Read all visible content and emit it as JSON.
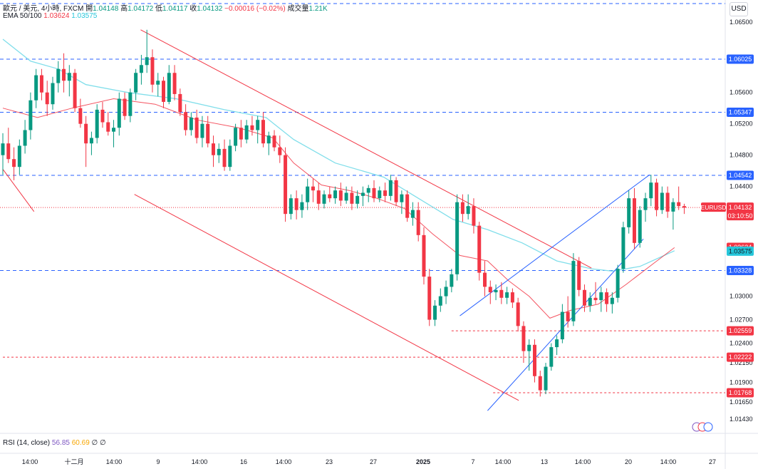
{
  "legend": {
    "symbol": "歐元 / 美元, 4小時, FXCM",
    "open_label": "開",
    "open": "1.04148",
    "high_label": "高",
    "high": "1.04172",
    "low_label": "低",
    "low": "1.04117",
    "close_label": "收",
    "close": "1.04132",
    "change": "−0.00016 (−0.02%)",
    "volume_label": "成交量",
    "volume": "1.21K",
    "ema_label": "EMA 50/100",
    "ema50": "1.03624",
    "ema100": "1.03575"
  },
  "currency": "USD",
  "rsi": {
    "label": "RSI (14, close)",
    "value": "56.85",
    "ma": "60.69",
    "flag1": "∅",
    "flag2": "∅"
  },
  "colors": {
    "up": "#089981",
    "down": "#f23645",
    "ema50": "#f23645",
    "ema100": "#80deea",
    "level": "#2962ff",
    "trend_down": "#f23645",
    "trend_up": "#2962ff"
  },
  "chart_data": {
    "type": "candlestick",
    "symbol": "EURUSD",
    "timeframe": "4小時",
    "ylim": [
      1.0125,
      1.0678
    ],
    "x_tick_labels": [
      "14:00",
      "十二月",
      "14:00",
      "9",
      "14:00",
      "16",
      "14:00",
      "23",
      "27",
      "2025",
      "7",
      "14:00",
      "13",
      "14:00",
      "20",
      "14:00",
      "27"
    ],
    "y_tick_labels": [
      "1.06500",
      "1.05600",
      "1.05200",
      "1.04800",
      "1.04400",
      "1.03000",
      "1.02700",
      "1.02400",
      "1.02150",
      "1.01900",
      "1.01650",
      "1.01430"
    ],
    "price_labels": [
      {
        "text": "1.06025",
        "value": 1.06025,
        "style": "blue"
      },
      {
        "text": "1.05347",
        "value": 1.05347,
        "style": "blue"
      },
      {
        "text": "1.04542",
        "value": 1.04542,
        "style": "blue"
      },
      {
        "text": "1.03624",
        "value": 1.03624,
        "style": "red"
      },
      {
        "text": "1.03575",
        "value": 1.03575,
        "style": "cyan"
      },
      {
        "text": "1.03328",
        "value": 1.03328,
        "style": "blue"
      },
      {
        "text": "1.02559",
        "value": 1.02559,
        "style": "red"
      },
      {
        "text": "1.02222",
        "value": 1.02222,
        "style": "red"
      },
      {
        "text": "1.01768",
        "value": 1.01768,
        "style": "red"
      }
    ],
    "last_price": {
      "symbol": "EURUSD",
      "price": "1.04132",
      "value": 1.04132,
      "countdown": "03:10:50"
    },
    "blue_levels": [
      1.06735,
      1.06025,
      1.05347,
      1.04542,
      1.03328
    ],
    "red_levels": [
      {
        "value": 1.02559,
        "from": 0.648
      },
      {
        "value": 1.02222,
        "from": 0.0
      },
      {
        "value": 1.01768,
        "from": 0.708
      }
    ],
    "ema50": [
      [
        0.0,
        1.054
      ],
      [
        0.05,
        1.0528
      ],
      [
        0.1,
        1.054
      ],
      [
        0.16,
        1.0552
      ],
      [
        0.22,
        1.0545
      ],
      [
        0.28,
        1.0525
      ],
      [
        0.34,
        1.0515
      ],
      [
        0.39,
        1.0502
      ],
      [
        0.42,
        1.047
      ],
      [
        0.46,
        1.0442
      ],
      [
        0.5,
        1.0435
      ],
      [
        0.54,
        1.0425
      ],
      [
        0.58,
        1.0412
      ],
      [
        0.62,
        1.038
      ],
      [
        0.66,
        1.0352
      ],
      [
        0.7,
        1.0345
      ],
      [
        0.73,
        1.032
      ],
      [
        0.76,
        1.03
      ],
      [
        0.79,
        1.0272
      ],
      [
        0.82,
        1.0282
      ],
      [
        0.86,
        1.029
      ],
      [
        0.9,
        1.0315
      ],
      [
        0.94,
        1.0342
      ],
      [
        0.97,
        1.0362
      ]
    ],
    "ema100": [
      [
        0.0,
        1.0628
      ],
      [
        0.04,
        1.06
      ],
      [
        0.08,
        1.059
      ],
      [
        0.12,
        1.057
      ],
      [
        0.18,
        1.056
      ],
      [
        0.25,
        1.0552
      ],
      [
        0.32,
        1.0538
      ],
      [
        0.38,
        1.0528
      ],
      [
        0.42,
        1.05
      ],
      [
        0.48,
        1.047
      ],
      [
        0.55,
        1.0452
      ],
      [
        0.6,
        1.0425
      ],
      [
        0.65,
        1.0398
      ],
      [
        0.7,
        1.0385
      ],
      [
        0.75,
        1.0368
      ],
      [
        0.8,
        1.0345
      ],
      [
        0.85,
        1.0335
      ],
      [
        0.88,
        1.0332
      ],
      [
        0.92,
        1.0338
      ],
      [
        0.95,
        1.035
      ],
      [
        0.97,
        1.0358
      ]
    ],
    "trendlines": [
      {
        "color": "down",
        "from": [
          0.0,
          1.0462
        ],
        "to": [
          0.045,
          1.0408
        ]
      },
      {
        "color": "down",
        "from": [
          0.199,
          1.064
        ],
        "to": [
          0.85,
          1.0336
        ]
      },
      {
        "color": "down",
        "from": [
          0.19,
          1.043
        ],
        "to": [
          0.745,
          1.0167
        ]
      },
      {
        "color": "up",
        "from": [
          0.66,
          1.0275
        ],
        "to": [
          0.934,
          1.0455
        ]
      },
      {
        "color": "up",
        "from": [
          0.7,
          1.0154
        ],
        "to": [
          0.925,
          1.0373
        ]
      }
    ],
    "candles": [
      [
        0.0,
        1.048,
        1.0508,
        1.0455,
        1.0495
      ],
      [
        0.008,
        1.0495,
        1.0515,
        1.047,
        1.0475
      ],
      [
        0.016,
        1.0475,
        1.049,
        1.0448,
        1.0465
      ],
      [
        0.024,
        1.0465,
        1.05,
        1.0455,
        1.0492
      ],
      [
        0.032,
        1.0492,
        1.0525,
        1.0482,
        1.0512
      ],
      [
        0.04,
        1.0512,
        1.056,
        1.05,
        1.055
      ],
      [
        0.048,
        1.055,
        1.059,
        1.054,
        1.0582
      ],
      [
        0.056,
        1.0582,
        1.059,
        1.055,
        1.056
      ],
      [
        0.064,
        1.056,
        1.0575,
        1.053,
        1.0545
      ],
      [
        0.072,
        1.0545,
        1.058,
        1.0538,
        1.0572
      ],
      [
        0.08,
        1.0572,
        1.06,
        1.056,
        1.059
      ],
      [
        0.088,
        1.059,
        1.061,
        1.056,
        1.0575
      ],
      [
        0.096,
        1.0575,
        1.0595,
        1.0555,
        1.0585
      ],
      [
        0.104,
        1.0585,
        1.059,
        1.0535,
        1.054
      ],
      [
        0.112,
        1.054,
        1.0552,
        1.0515,
        1.052
      ],
      [
        0.12,
        1.052,
        1.053,
        1.0465,
        1.0495
      ],
      [
        0.128,
        1.0495,
        1.051,
        1.048,
        1.0502
      ],
      [
        0.136,
        1.0502,
        1.0545,
        1.0495,
        1.0538
      ],
      [
        0.144,
        1.0538,
        1.0548,
        1.0515,
        1.0522
      ],
      [
        0.152,
        1.0522,
        1.0535,
        1.0505,
        1.051
      ],
      [
        0.16,
        1.051,
        1.0525,
        1.049,
        1.0515
      ],
      [
        0.168,
        1.0515,
        1.056,
        1.0505,
        1.0552
      ],
      [
        0.176,
        1.0552,
        1.056,
        1.0525,
        1.053
      ],
      [
        0.184,
        1.053,
        1.0565,
        1.0522,
        1.056
      ],
      [
        0.192,
        1.056,
        1.059,
        1.055,
        1.0585
      ],
      [
        0.2,
        1.0585,
        1.0608,
        1.057,
        1.0595
      ],
      [
        0.208,
        1.0595,
        1.064,
        1.0585,
        1.0605
      ],
      [
        0.216,
        1.0605,
        1.0615,
        1.056,
        1.057
      ],
      [
        0.224,
        1.057,
        1.0585,
        1.0555,
        1.0575
      ],
      [
        0.232,
        1.0575,
        1.058,
        1.054,
        1.0548
      ],
      [
        0.24,
        1.0548,
        1.0595,
        1.0545,
        1.0585
      ],
      [
        0.248,
        1.0585,
        1.0595,
        1.055,
        1.0558
      ],
      [
        0.256,
        1.0558,
        1.0565,
        1.053,
        1.0535
      ],
      [
        0.264,
        1.0535,
        1.0545,
        1.0505,
        1.0512
      ],
      [
        0.272,
        1.0512,
        1.0535,
        1.0505,
        1.0528
      ],
      [
        0.28,
        1.0528,
        1.0538,
        1.0495,
        1.0502
      ],
      [
        0.288,
        1.0502,
        1.053,
        1.049,
        1.052
      ],
      [
        0.296,
        1.052,
        1.053,
        1.049,
        1.0495
      ],
      [
        0.304,
        1.0495,
        1.0505,
        1.0465,
        1.048
      ],
      [
        0.312,
        1.048,
        1.0495,
        1.047,
        1.0488
      ],
      [
        0.32,
        1.0488,
        1.05,
        1.046,
        1.0465
      ],
      [
        0.328,
        1.0465,
        1.05,
        1.046,
        1.0492
      ],
      [
        0.336,
        1.0492,
        1.052,
        1.0485,
        1.0515
      ],
      [
        0.344,
        1.0515,
        1.0525,
        1.049,
        1.05
      ],
      [
        0.352,
        1.05,
        1.0525,
        1.0495,
        1.0518
      ],
      [
        0.36,
        1.0518,
        1.053,
        1.0505,
        1.0512
      ],
      [
        0.368,
        1.0512,
        1.053,
        1.0495,
        1.0525
      ],
      [
        0.376,
        1.0525,
        1.0535,
        1.049,
        1.0495
      ],
      [
        0.384,
        1.0495,
        1.051,
        1.048,
        1.0505
      ],
      [
        0.392,
        1.0505,
        1.0512,
        1.0485,
        1.049
      ],
      [
        0.4,
        1.049,
        1.0505,
        1.047,
        1.048
      ],
      [
        0.408,
        1.048,
        1.049,
        1.0395,
        1.0405
      ],
      [
        0.416,
        1.0405,
        1.043,
        1.0398,
        1.0425
      ],
      [
        0.424,
        1.0425,
        1.0435,
        1.0398,
        1.041
      ],
      [
        0.432,
        1.041,
        1.043,
        1.04,
        1.042
      ],
      [
        0.44,
        1.042,
        1.045,
        1.041,
        1.044
      ],
      [
        0.448,
        1.044,
        1.045,
        1.042,
        1.0435
      ],
      [
        0.456,
        1.0435,
        1.0445,
        1.041,
        1.0418
      ],
      [
        0.464,
        1.0418,
        1.0435,
        1.0412,
        1.043
      ],
      [
        0.472,
        1.043,
        1.044,
        1.042,
        1.0425
      ],
      [
        0.48,
        1.0425,
        1.044,
        1.0418,
        1.0435
      ],
      [
        0.488,
        1.0435,
        1.0445,
        1.0415,
        1.0422
      ],
      [
        0.496,
        1.0422,
        1.044,
        1.0418,
        1.0432
      ],
      [
        0.504,
        1.0432,
        1.044,
        1.041,
        1.0418
      ],
      [
        0.512,
        1.0418,
        1.0435,
        1.0412,
        1.0428
      ],
      [
        0.52,
        1.0428,
        1.044,
        1.0415,
        1.0432
      ],
      [
        0.528,
        1.0432,
        1.0442,
        1.042,
        1.0438
      ],
      [
        0.536,
        1.0438,
        1.0448,
        1.042,
        1.0425
      ],
      [
        0.544,
        1.0425,
        1.044,
        1.042,
        1.0435
      ],
      [
        0.552,
        1.0435,
        1.0445,
        1.042,
        1.0428
      ],
      [
        0.56,
        1.0428,
        1.0455,
        1.0422,
        1.0448
      ],
      [
        0.568,
        1.0448,
        1.0452,
        1.0415,
        1.042
      ],
      [
        0.576,
        1.042,
        1.0435,
        1.0405,
        1.043
      ],
      [
        0.584,
        1.043,
        1.0435,
        1.0395,
        1.04
      ],
      [
        0.592,
        1.04,
        1.042,
        1.039,
        1.041
      ],
      [
        0.6,
        1.041,
        1.042,
        1.037,
        1.0378
      ],
      [
        0.608,
        1.0378,
        1.0388,
        1.0315,
        1.0325
      ],
      [
        0.616,
        1.0325,
        1.0335,
        1.0262,
        1.027
      ],
      [
        0.624,
        1.027,
        1.0295,
        1.0262,
        1.0288
      ],
      [
        0.632,
        1.0288,
        1.031,
        1.028,
        1.03
      ],
      [
        0.64,
        1.03,
        1.032,
        1.029,
        1.0312
      ],
      [
        0.648,
        1.0312,
        1.0335,
        1.0305,
        1.0328
      ],
      [
        0.656,
        1.0328,
        1.043,
        1.032,
        1.042
      ],
      [
        0.664,
        1.042,
        1.043,
        1.0395,
        1.0405
      ],
      [
        0.672,
        1.0405,
        1.043,
        1.0398,
        1.0415
      ],
      [
        0.68,
        1.0415,
        1.0425,
        1.038,
        1.039
      ],
      [
        0.688,
        1.039,
        1.0395,
        1.032,
        1.033
      ],
      [
        0.696,
        1.033,
        1.0345,
        1.03,
        1.0312
      ],
      [
        0.704,
        1.0312,
        1.032,
        1.029,
        1.0305
      ],
      [
        0.712,
        1.0305,
        1.0315,
        1.0295,
        1.0308
      ],
      [
        0.72,
        1.0308,
        1.0318,
        1.029,
        1.0298
      ],
      [
        0.728,
        1.0298,
        1.0312,
        1.029,
        1.0305
      ],
      [
        0.736,
        1.0305,
        1.031,
        1.0285,
        1.0292
      ],
      [
        0.744,
        1.0292,
        1.0298,
        1.0255,
        1.0262
      ],
      [
        0.752,
        1.0262,
        1.0268,
        1.0215,
        1.023
      ],
      [
        0.76,
        1.023,
        1.0245,
        1.0205,
        1.0238
      ],
      [
        0.768,
        1.0238,
        1.0245,
        1.019,
        1.0198
      ],
      [
        0.776,
        1.0198,
        1.0205,
        1.0172,
        1.018
      ],
      [
        0.784,
        1.018,
        1.0215,
        1.0175,
        1.021
      ],
      [
        0.792,
        1.021,
        1.024,
        1.0205,
        1.0235
      ],
      [
        0.8,
        1.0235,
        1.025,
        1.0225,
        1.0245
      ],
      [
        0.808,
        1.0245,
        1.029,
        1.024,
        1.028
      ],
      [
        0.816,
        1.028,
        1.03,
        1.026,
        1.0268
      ],
      [
        0.824,
        1.0268,
        1.0355,
        1.0262,
        1.0345
      ],
      [
        0.832,
        1.0345,
        1.035,
        1.03,
        1.0308
      ],
      [
        0.84,
        1.0308,
        1.0315,
        1.028,
        1.0288
      ],
      [
        0.848,
        1.0288,
        1.0305,
        1.028,
        1.0298
      ],
      [
        0.856,
        1.0298,
        1.0318,
        1.029,
        1.0295
      ],
      [
        0.864,
        1.0295,
        1.0312,
        1.028,
        1.0305
      ],
      [
        0.872,
        1.0305,
        1.031,
        1.028,
        1.029
      ],
      [
        0.88,
        1.029,
        1.0305,
        1.0278,
        1.0298
      ],
      [
        0.888,
        1.0298,
        1.034,
        1.0292,
        1.0335
      ],
      [
        0.896,
        1.0335,
        1.0395,
        1.033,
        1.0388
      ],
      [
        0.904,
        1.0388,
        1.0435,
        1.038,
        1.0425
      ],
      [
        0.912,
        1.0425,
        1.0438,
        1.036,
        1.0368
      ],
      [
        0.92,
        1.0368,
        1.0415,
        1.0362,
        1.041
      ],
      [
        0.928,
        1.041,
        1.0432,
        1.0395,
        1.0425
      ],
      [
        0.936,
        1.0425,
        1.0455,
        1.0415,
        1.0445
      ],
      [
        0.944,
        1.0445,
        1.045,
        1.0402,
        1.041
      ],
      [
        0.952,
        1.041,
        1.044,
        1.0405,
        1.0432
      ],
      [
        0.96,
        1.0432,
        1.044,
        1.04,
        1.0408
      ],
      [
        0.968,
        1.0408,
        1.0425,
        1.0385,
        1.042
      ],
      [
        0.976,
        1.042,
        1.044,
        1.041,
        1.0415
      ],
      [
        0.984,
        1.0415,
        1.0418,
        1.0405,
        1.0413
      ]
    ]
  }
}
